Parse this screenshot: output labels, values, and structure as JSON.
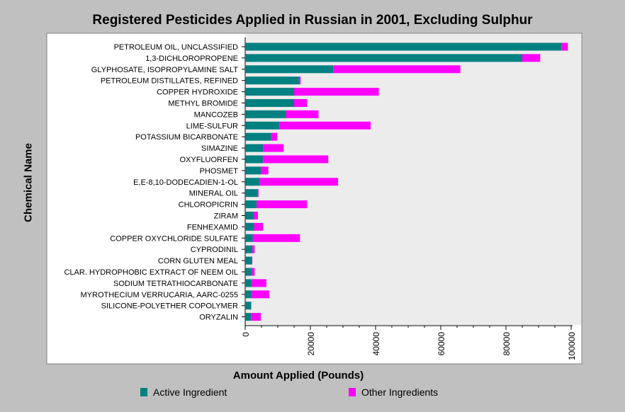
{
  "chart_data": {
    "type": "bar",
    "orientation": "horizontal",
    "stacked": true,
    "title": "Registered Pesticides Applied in Russian in 2001, Excluding Sulphur",
    "xlabel": "Amount Applied (Pounds)",
    "ylabel": "Chemical Name",
    "xlim": [
      0,
      100000
    ],
    "xticks": [
      "0",
      "20000",
      "40000",
      "60000",
      "80000",
      "100000"
    ],
    "grid": false,
    "legend_position": "bottom",
    "categories": [
      "PETROLEUM OIL, UNCLASSIFIED",
      "1,3-DICHLOROPROPENE",
      "GLYPHOSATE, ISOPROPYLAMINE SALT",
      "PETROLEUM DISTILLATES, REFINED",
      "COPPER HYDROXIDE",
      "METHYL BROMIDE",
      "MANCOZEB",
      "LIME-SULFUR",
      "POTASSIUM BICARBONATE",
      "SIMAZINE",
      "OXYFLUORFEN",
      "PHOSMET",
      "E,E-8,10-DODECADIEN-1-OL",
      "MINERAL OIL",
      "CHLOROPICRIN",
      "ZIRAM",
      "FENHEXAMID",
      "COPPER OXYCHLORIDE SULFATE",
      "CYPRODINIL",
      "CORN GLUTEN MEAL",
      "CLAR. HYDROPHOBIC EXTRACT OF NEEM OIL",
      "SODIUM TETRATHIOCARBONATE",
      "MYROTHECIUM VERRUCARIA,  AARC-0255",
      "SILICONE-POLYETHER COPOLYMER",
      "ORYZALIN"
    ],
    "series": [
      {
        "name": "Active Ingredient",
        "color": "#008080",
        "values": [
          97000,
          85000,
          27000,
          16500,
          15000,
          15000,
          12500,
          10500,
          8000,
          5500,
          5500,
          4800,
          4500,
          3800,
          3500,
          2700,
          2700,
          2300,
          2200,
          2100,
          2100,
          2000,
          1900,
          1800,
          1800
        ]
      },
      {
        "name": "Other Ingredients",
        "color": "#ff00ff",
        "values": [
          2000,
          5500,
          39000,
          500,
          26000,
          4000,
          10000,
          28000,
          1800,
          6300,
          20000,
          2300,
          24000,
          300,
          15500,
          1200,
          2800,
          14500,
          700,
          100,
          800,
          4500,
          5500,
          100,
          3000
        ]
      }
    ]
  }
}
